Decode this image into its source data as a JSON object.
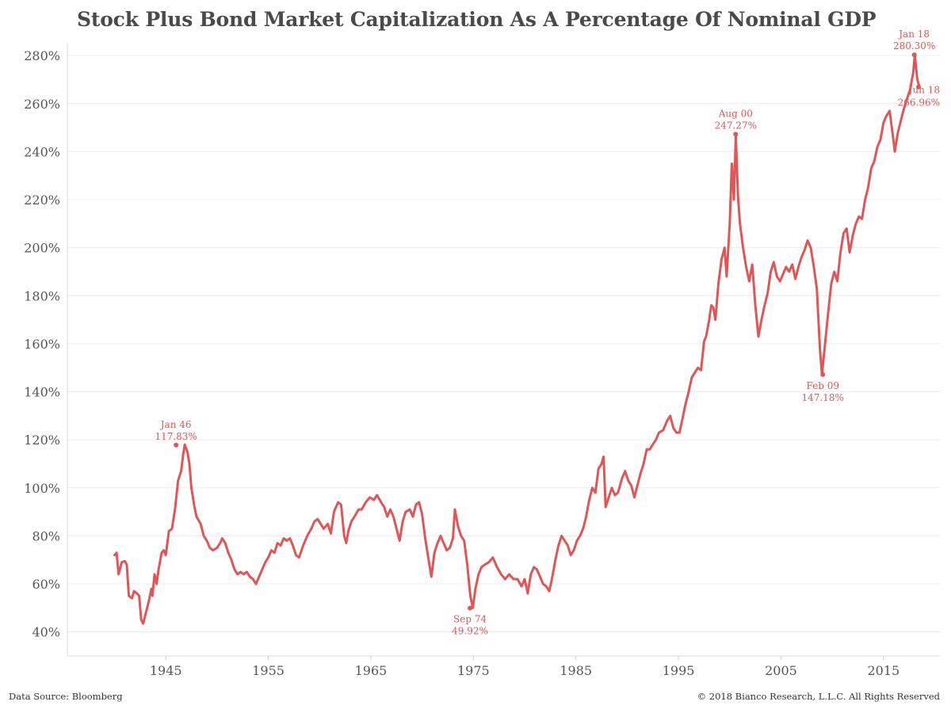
{
  "chart_data": {
    "type": "line",
    "title": "Stock Plus Bond Market Capitalization As A Percentage Of Nominal GDP",
    "xlabel": "",
    "ylabel": "",
    "xlim": [
      1935.4,
      2020.5
    ],
    "ylim": [
      30,
      285
    ],
    "x_ticks": [
      1945,
      1955,
      1965,
      1975,
      1985,
      1995,
      2005,
      2015
    ],
    "y_ticks": [
      {
        "value": 40,
        "label": "40%"
      },
      {
        "value": 60,
        "label": "60%"
      },
      {
        "value": 80,
        "label": "80%"
      },
      {
        "value": 100,
        "label": "100%"
      },
      {
        "value": 120,
        "label": "120%"
      },
      {
        "value": 140,
        "label": "140%"
      },
      {
        "value": 160,
        "label": "160%"
      },
      {
        "value": 180,
        "label": "180%"
      },
      {
        "value": 200,
        "label": "200%"
      },
      {
        "value": 220,
        "label": "220%"
      },
      {
        "value": 240,
        "label": "240%"
      },
      {
        "value": 260,
        "label": "260%"
      },
      {
        "value": 280,
        "label": "280%"
      }
    ],
    "grid": {
      "horizontal": true,
      "vertical": false
    },
    "line_color": "#e05555",
    "series": [
      {
        "points": [
          [
            1940.0,
            72
          ],
          [
            1940.2,
            73
          ],
          [
            1940.4,
            64
          ],
          [
            1940.7,
            69
          ],
          [
            1941.0,
            69.5
          ],
          [
            1941.2,
            68
          ],
          [
            1941.4,
            55
          ],
          [
            1941.7,
            54
          ],
          [
            1941.9,
            57
          ],
          [
            1942.2,
            56
          ],
          [
            1942.4,
            55
          ],
          [
            1942.6,
            45
          ],
          [
            1942.8,
            43.5
          ],
          [
            1943.0,
            47
          ],
          [
            1943.3,
            52
          ],
          [
            1943.6,
            58
          ],
          [
            1943.7,
            55
          ],
          [
            1943.9,
            64
          ],
          [
            1944.1,
            60
          ],
          [
            1944.3,
            66
          ],
          [
            1944.6,
            73
          ],
          [
            1944.8,
            74
          ],
          [
            1945.0,
            72
          ],
          [
            1945.3,
            82
          ],
          [
            1945.6,
            83
          ],
          [
            1945.9,
            91
          ],
          [
            1946.2,
            103
          ],
          [
            1946.5,
            107
          ],
          [
            1946.7,
            114
          ],
          [
            1946.85,
            118
          ],
          [
            1947.1,
            115
          ],
          [
            1947.3,
            110
          ],
          [
            1947.5,
            100
          ],
          [
            1947.8,
            92
          ],
          [
            1948.0,
            88
          ],
          [
            1948.4,
            85
          ],
          [
            1948.7,
            80
          ],
          [
            1949.0,
            78
          ],
          [
            1949.3,
            75
          ],
          [
            1949.6,
            74
          ],
          [
            1950.0,
            75
          ],
          [
            1950.3,
            77
          ],
          [
            1950.5,
            79
          ],
          [
            1950.8,
            77
          ],
          [
            1951.1,
            73
          ],
          [
            1951.4,
            70
          ],
          [
            1951.7,
            66
          ],
          [
            1952.0,
            64
          ],
          [
            1952.3,
            65
          ],
          [
            1952.6,
            64
          ],
          [
            1952.9,
            65
          ],
          [
            1953.2,
            63
          ],
          [
            1953.5,
            62
          ],
          [
            1953.8,
            60
          ],
          [
            1954.1,
            63
          ],
          [
            1954.4,
            66
          ],
          [
            1954.7,
            69
          ],
          [
            1955.0,
            71
          ],
          [
            1955.3,
            74
          ],
          [
            1955.6,
            73
          ],
          [
            1955.9,
            77
          ],
          [
            1956.2,
            76
          ],
          [
            1956.5,
            79
          ],
          [
            1956.8,
            78
          ],
          [
            1957.1,
            79
          ],
          [
            1957.4,
            76
          ],
          [
            1957.7,
            72
          ],
          [
            1958.0,
            71
          ],
          [
            1958.4,
            76
          ],
          [
            1958.8,
            80
          ],
          [
            1959.2,
            83
          ],
          [
            1959.5,
            86
          ],
          [
            1959.8,
            87
          ],
          [
            1960.1,
            85
          ],
          [
            1960.4,
            83
          ],
          [
            1960.8,
            85
          ],
          [
            1961.1,
            81
          ],
          [
            1961.4,
            90
          ],
          [
            1961.8,
            94
          ],
          [
            1962.1,
            93
          ],
          [
            1962.4,
            80
          ],
          [
            1962.6,
            77
          ],
          [
            1962.8,
            82
          ],
          [
            1963.1,
            86
          ],
          [
            1963.4,
            88
          ],
          [
            1963.8,
            91
          ],
          [
            1964.1,
            91
          ],
          [
            1964.5,
            94
          ],
          [
            1964.9,
            96
          ],
          [
            1965.3,
            95
          ],
          [
            1965.6,
            97
          ],
          [
            1966.0,
            94
          ],
          [
            1966.3,
            92
          ],
          [
            1966.6,
            88
          ],
          [
            1966.9,
            91
          ],
          [
            1967.2,
            88
          ],
          [
            1967.5,
            83
          ],
          [
            1967.8,
            78
          ],
          [
            1968.1,
            86
          ],
          [
            1968.4,
            90
          ],
          [
            1968.8,
            91
          ],
          [
            1969.1,
            88
          ],
          [
            1969.4,
            93
          ],
          [
            1969.7,
            94
          ],
          [
            1970.0,
            89
          ],
          [
            1970.3,
            79
          ],
          [
            1970.6,
            71
          ],
          [
            1970.9,
            63
          ],
          [
            1971.2,
            73
          ],
          [
            1971.5,
            77
          ],
          [
            1971.8,
            80
          ],
          [
            1972.1,
            77
          ],
          [
            1972.4,
            74
          ],
          [
            1972.7,
            75
          ],
          [
            1973.0,
            79
          ],
          [
            1973.2,
            91
          ],
          [
            1973.5,
            84
          ],
          [
            1973.8,
            80
          ],
          [
            1974.1,
            78
          ],
          [
            1974.4,
            68
          ],
          [
            1974.7,
            55
          ],
          [
            1974.95,
            50
          ],
          [
            1975.2,
            58
          ],
          [
            1975.5,
            64
          ],
          [
            1975.8,
            67
          ],
          [
            1976.1,
            68
          ],
          [
            1976.5,
            69
          ],
          [
            1976.9,
            71
          ],
          [
            1977.3,
            67
          ],
          [
            1977.7,
            64
          ],
          [
            1978.1,
            62
          ],
          [
            1978.5,
            64
          ],
          [
            1978.9,
            62
          ],
          [
            1979.3,
            62
          ],
          [
            1979.7,
            59
          ],
          [
            1980.0,
            62
          ],
          [
            1980.3,
            56
          ],
          [
            1980.6,
            64
          ],
          [
            1980.9,
            67
          ],
          [
            1981.2,
            66
          ],
          [
            1981.5,
            63
          ],
          [
            1981.8,
            60
          ],
          [
            1982.1,
            59
          ],
          [
            1982.4,
            57
          ],
          [
            1982.7,
            63
          ],
          [
            1983.0,
            70
          ],
          [
            1983.3,
            76
          ],
          [
            1983.6,
            80
          ],
          [
            1983.9,
            78
          ],
          [
            1984.2,
            76
          ],
          [
            1984.5,
            72
          ],
          [
            1984.8,
            74
          ],
          [
            1985.1,
            78
          ],
          [
            1985.4,
            80
          ],
          [
            1985.7,
            83
          ],
          [
            1986.0,
            88
          ],
          [
            1986.3,
            95
          ],
          [
            1986.6,
            100
          ],
          [
            1986.9,
            98
          ],
          [
            1987.2,
            108
          ],
          [
            1987.5,
            110
          ],
          [
            1987.7,
            113
          ],
          [
            1987.9,
            92
          ],
          [
            1988.2,
            96
          ],
          [
            1988.5,
            100
          ],
          [
            1988.8,
            97
          ],
          [
            1989.1,
            98
          ],
          [
            1989.5,
            104
          ],
          [
            1989.8,
            107
          ],
          [
            1990.1,
            103
          ],
          [
            1990.4,
            101
          ],
          [
            1990.7,
            96
          ],
          [
            1991.0,
            101
          ],
          [
            1991.3,
            106
          ],
          [
            1991.6,
            110
          ],
          [
            1991.9,
            116
          ],
          [
            1992.2,
            116
          ],
          [
            1992.5,
            118
          ],
          [
            1992.8,
            120
          ],
          [
            1993.1,
            123
          ],
          [
            1993.5,
            124
          ],
          [
            1993.9,
            128
          ],
          [
            1994.2,
            130
          ],
          [
            1994.5,
            125
          ],
          [
            1994.8,
            123
          ],
          [
            1995.1,
            123
          ],
          [
            1995.4,
            129
          ],
          [
            1995.7,
            135
          ],
          [
            1996.0,
            140
          ],
          [
            1996.3,
            146
          ],
          [
            1996.6,
            148
          ],
          [
            1996.9,
            150
          ],
          [
            1997.2,
            149
          ],
          [
            1997.5,
            161
          ],
          [
            1997.7,
            163
          ],
          [
            1998.0,
            170
          ],
          [
            1998.2,
            176
          ],
          [
            1998.4,
            175
          ],
          [
            1998.6,
            170
          ],
          [
            1998.9,
            185
          ],
          [
            1999.2,
            195
          ],
          [
            1999.5,
            200
          ],
          [
            1999.7,
            188
          ],
          [
            2000.0,
            210
          ],
          [
            2000.2,
            235
          ],
          [
            2000.4,
            220
          ],
          [
            2000.6,
            247
          ],
          [
            2000.8,
            222
          ],
          [
            2001.0,
            210
          ],
          [
            2001.3,
            200
          ],
          [
            2001.6,
            192
          ],
          [
            2001.9,
            186
          ],
          [
            2002.2,
            193
          ],
          [
            2002.5,
            176
          ],
          [
            2002.8,
            163
          ],
          [
            2003.1,
            170
          ],
          [
            2003.4,
            176
          ],
          [
            2003.7,
            181
          ],
          [
            2004.0,
            190
          ],
          [
            2004.3,
            194
          ],
          [
            2004.6,
            188
          ],
          [
            2004.9,
            186
          ],
          [
            2005.2,
            189
          ],
          [
            2005.5,
            192
          ],
          [
            2005.8,
            190
          ],
          [
            2006.1,
            193
          ],
          [
            2006.4,
            187
          ],
          [
            2006.7,
            192
          ],
          [
            2007.0,
            196
          ],
          [
            2007.3,
            199
          ],
          [
            2007.6,
            203
          ],
          [
            2007.9,
            200
          ],
          [
            2008.2,
            192
          ],
          [
            2008.5,
            183
          ],
          [
            2008.8,
            158
          ],
          [
            2009.0,
            147
          ],
          [
            2009.3,
            160
          ],
          [
            2009.6,
            173
          ],
          [
            2009.9,
            185
          ],
          [
            2010.2,
            190
          ],
          [
            2010.5,
            186
          ],
          [
            2010.8,
            198
          ],
          [
            2011.1,
            206
          ],
          [
            2011.4,
            208
          ],
          [
            2011.7,
            198
          ],
          [
            2012.0,
            205
          ],
          [
            2012.3,
            210
          ],
          [
            2012.6,
            213
          ],
          [
            2012.9,
            212
          ],
          [
            2013.2,
            220
          ],
          [
            2013.5,
            225
          ],
          [
            2013.8,
            233
          ],
          [
            2014.1,
            236
          ],
          [
            2014.4,
            242
          ],
          [
            2014.7,
            245
          ],
          [
            2015.0,
            252
          ],
          [
            2015.3,
            255
          ],
          [
            2015.6,
            257
          ],
          [
            2015.9,
            247
          ],
          [
            2016.1,
            240
          ],
          [
            2016.4,
            248
          ],
          [
            2016.7,
            253
          ],
          [
            2017.0,
            258
          ],
          [
            2017.3,
            262
          ],
          [
            2017.6,
            266
          ],
          [
            2017.9,
            273
          ],
          [
            2018.05,
            280.3
          ],
          [
            2018.3,
            270
          ],
          [
            2018.5,
            266.96
          ]
        ]
      }
    ],
    "annotations": [
      {
        "date": "Jan 46",
        "value_label": "117.83%",
        "x": 1946.0,
        "y": 117.83
      },
      {
        "date": "Sep 74",
        "value_label": "49.92%",
        "x": 1974.67,
        "y": 49.92
      },
      {
        "date": "Aug 00",
        "value_label": "247.27%",
        "x": 2000.58,
        "y": 247.27
      },
      {
        "date": "Feb 09",
        "value_label": "147.18%",
        "x": 2009.08,
        "y": 147.18
      },
      {
        "date": "Jan 18",
        "value_label": "280.30%",
        "x": 2018.0,
        "y": 280.3
      },
      {
        "date": "Jun 18",
        "value_label": "266.96%",
        "x": 2018.42,
        "y": 266.96
      }
    ]
  },
  "footer": {
    "source": "Data Source: Bloomberg",
    "copyright": "© 2018 Bianco Research, L.L.C. All Rights Reserved"
  }
}
